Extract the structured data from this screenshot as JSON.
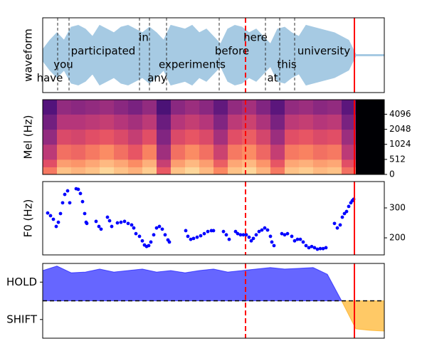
{
  "chart_data": [
    {
      "type": "waveform",
      "ylabel": "waveform",
      "color": "#a6cae3",
      "xlim": [
        0,
        4.8
      ],
      "ylim": [
        -1,
        1
      ],
      "x": [
        0,
        0.1,
        0.2,
        0.3,
        0.4,
        0.5,
        0.6,
        0.7,
        0.8,
        0.9,
        1.0,
        1.1,
        1.2,
        1.3,
        1.4,
        1.5,
        1.6,
        1.7,
        1.8,
        1.9,
        2.0,
        2.1,
        2.2,
        2.3,
        2.4,
        2.5,
        2.6,
        2.7,
        2.8,
        2.9,
        3.0,
        3.1,
        3.2,
        3.3,
        3.4,
        3.5,
        3.6,
        3.7,
        3.8,
        3.9,
        4.0,
        4.1,
        4.2,
        4.3,
        4.4,
        4.5,
        4.6,
        4.7,
        4.8
      ],
      "values": [
        0.15,
        0.4,
        0.6,
        0.4,
        0.75,
        0.8,
        0.7,
        0.5,
        0.8,
        0.7,
        0.6,
        0.75,
        0.8,
        0.7,
        0.6,
        0.75,
        0.6,
        0.4,
        0.8,
        0.75,
        0.7,
        0.8,
        0.6,
        0.7,
        0.5,
        0.3,
        0.7,
        0.8,
        0.75,
        0.6,
        0.7,
        0.5,
        0.3,
        0.7,
        0.75,
        0.6,
        0.5,
        0.8,
        0.75,
        0.7,
        0.65,
        0.6,
        0.5,
        0.4,
        0.02,
        0.02,
        0.02,
        0.02,
        0.02
      ],
      "words": [
        {
          "text": "have",
          "x": 0.1
        },
        {
          "text": "you",
          "x": 0.29
        },
        {
          "text": "participated",
          "x": 0.85
        },
        {
          "text": "in",
          "x": 1.42
        },
        {
          "text": "any",
          "x": 1.61
        },
        {
          "text": "experiments",
          "x": 2.1
        },
        {
          "text": "before",
          "x": 2.66
        },
        {
          "text": "here",
          "x": 2.99
        },
        {
          "text": "at",
          "x": 3.23
        },
        {
          "text": "this",
          "x": 3.43
        },
        {
          "text": "university",
          "x": 3.95
        }
      ],
      "boundaries": [
        0.21,
        0.37,
        1.36,
        1.5,
        1.74,
        2.48,
        3.13,
        3.33,
        3.54
      ],
      "vlines": [
        {
          "x": 2.85,
          "color": "#ff0000",
          "style": "dashed"
        },
        {
          "x": 4.38,
          "color": "#ff0000",
          "style": "solid"
        }
      ]
    },
    {
      "type": "heatmap",
      "ylabel": "Mel (Hz)",
      "colormap": "magma",
      "clim": [
        0,
        1
      ],
      "xlim": [
        0,
        4.8
      ],
      "ylim": [
        0,
        8000
      ],
      "yscale": "symlog",
      "linthresh": 512,
      "yticks": [
        0,
        512,
        1024,
        2048,
        4096
      ],
      "y_edges": [
        0,
        256,
        512,
        1024,
        2048,
        4096,
        8000
      ],
      "matrix": [
        [
          0.72,
          0.88,
          0.85,
          0.88,
          0.92,
          0.88,
          0.84,
          0.9,
          0.65,
          0.88,
          0.92,
          0.86,
          0.75,
          0.88,
          0.92,
          0.85,
          0.72,
          0.88,
          0.9,
          0.86,
          0.88,
          0.7,
          0,
          0
        ],
        [
          0.62,
          0.8,
          0.78,
          0.82,
          0.86,
          0.82,
          0.76,
          0.84,
          0.55,
          0.8,
          0.86,
          0.8,
          0.66,
          0.82,
          0.86,
          0.78,
          0.64,
          0.82,
          0.84,
          0.8,
          0.82,
          0.62,
          0,
          0
        ],
        [
          0.52,
          0.7,
          0.68,
          0.72,
          0.76,
          0.7,
          0.64,
          0.74,
          0.45,
          0.7,
          0.76,
          0.7,
          0.56,
          0.72,
          0.76,
          0.68,
          0.54,
          0.72,
          0.74,
          0.7,
          0.72,
          0.52,
          0,
          0
        ],
        [
          0.42,
          0.6,
          0.58,
          0.62,
          0.64,
          0.6,
          0.54,
          0.62,
          0.38,
          0.6,
          0.64,
          0.6,
          0.46,
          0.62,
          0.66,
          0.58,
          0.44,
          0.62,
          0.64,
          0.6,
          0.62,
          0.44,
          0,
          0
        ],
        [
          0.34,
          0.5,
          0.5,
          0.52,
          0.54,
          0.5,
          0.46,
          0.52,
          0.32,
          0.5,
          0.54,
          0.5,
          0.38,
          0.52,
          0.56,
          0.48,
          0.36,
          0.52,
          0.54,
          0.5,
          0.52,
          0.36,
          0,
          0
        ],
        [
          0.26,
          0.42,
          0.4,
          0.42,
          0.44,
          0.4,
          0.36,
          0.42,
          0.24,
          0.4,
          0.44,
          0.4,
          0.3,
          0.42,
          0.46,
          0.38,
          0.28,
          0.42,
          0.44,
          0.4,
          0.42,
          0.28,
          0,
          0
        ]
      ],
      "vlines": [
        {
          "x": 2.85,
          "color": "#ff0000",
          "style": "dashed"
        },
        {
          "x": 4.38,
          "color": "#ff0000",
          "style": "solid"
        }
      ]
    },
    {
      "type": "scatter",
      "ylabel": "F0 (Hz)",
      "color": "#0000ff",
      "xlim": [
        0,
        4.8
      ],
      "ylim": [
        143,
        388
      ],
      "yticks": [
        200,
        300
      ],
      "x": [
        0.07,
        0.11,
        0.15,
        0.19,
        0.22,
        0.25,
        0.28,
        0.31,
        0.35,
        0.38,
        0.47,
        0.5,
        0.53,
        0.56,
        0.59,
        0.61,
        0.62,
        0.75,
        0.79,
        0.82,
        0.91,
        0.94,
        0.97,
        1.05,
        1.1,
        1.15,
        1.2,
        1.25,
        1.28,
        1.31,
        1.36,
        1.4,
        1.43,
        1.46,
        1.49,
        1.52,
        1.56,
        1.6,
        1.64,
        1.68,
        1.72,
        1.76,
        1.78,
        2.01,
        2.04,
        2.08,
        2.12,
        2.17,
        2.22,
        2.27,
        2.32,
        2.37,
        2.4,
        2.54,
        2.58,
        2.62,
        2.71,
        2.74,
        2.78,
        2.82,
        2.86,
        2.9,
        2.93,
        2.96,
        3.0,
        3.04,
        3.08,
        3.12,
        3.16,
        3.2,
        3.22,
        3.25,
        3.36,
        3.4,
        3.44,
        3.5,
        3.54,
        3.58,
        3.62,
        3.66,
        3.7,
        3.74,
        3.78,
        3.82,
        3.86,
        3.9,
        3.94,
        3.98,
        4.1,
        4.14,
        4.18,
        4.21,
        4.24,
        4.27,
        4.3,
        4.33,
        4.35,
        4.37
      ],
      "values": [
        283,
        274,
        262,
        238,
        252,
        281,
        317,
        345,
        357,
        317,
        364,
        362,
        348,
        321,
        281,
        252,
        248,
        255,
        238,
        229,
        269,
        257,
        238,
        250,
        252,
        255,
        248,
        243,
        233,
        214,
        205,
        190,
        176,
        171,
        174,
        186,
        210,
        233,
        238,
        229,
        210,
        193,
        186,
        224,
        205,
        195,
        198,
        202,
        207,
        214,
        221,
        224,
        224,
        221,
        210,
        195,
        221,
        214,
        210,
        210,
        210,
        202,
        190,
        198,
        210,
        221,
        226,
        233,
        226,
        205,
        186,
        174,
        214,
        210,
        214,
        205,
        190,
        195,
        195,
        186,
        174,
        167,
        171,
        167,
        162,
        164,
        164,
        167,
        248,
        233,
        243,
        269,
        281,
        288,
        305,
        317,
        324,
        329
      ],
      "vlines": [
        {
          "x": 2.85,
          "color": "#ff0000",
          "style": "dashed"
        },
        {
          "x": 4.38,
          "color": "#ff0000",
          "style": "solid"
        }
      ]
    },
    {
      "type": "area",
      "xlim": [
        0,
        4.8
      ],
      "ylim": [
        -1,
        1
      ],
      "yticks": [
        {
          "value": 0.5,
          "label": "HOLD"
        },
        {
          "value": -0.5,
          "label": "SHIFT"
        }
      ],
      "x": [
        0,
        0.2,
        0.4,
        0.6,
        0.8,
        1.0,
        1.2,
        1.4,
        1.6,
        1.8,
        2.0,
        2.2,
        2.4,
        2.6,
        2.8,
        3.0,
        3.2,
        3.4,
        3.6,
        3.8,
        4.0,
        4.2,
        4.4,
        4.6,
        4.8
      ],
      "series": [
        {
          "color": "#0000ff",
          "values": [
            0.81,
            0.93,
            0.75,
            0.77,
            0.85,
            0.77,
            0.81,
            0.85,
            0.77,
            0.81,
            0.75,
            0.81,
            0.85,
            0.77,
            0.81,
            0.85,
            0.89,
            0.85,
            0.87,
            0.89,
            0.71,
            0,
            null,
            null,
            null
          ]
        },
        {
          "color": "#ffa500",
          "values": [
            null,
            null,
            null,
            null,
            null,
            null,
            null,
            null,
            null,
            null,
            null,
            null,
            null,
            null,
            null,
            null,
            null,
            null,
            null,
            null,
            null,
            0,
            -0.75,
            -0.79,
            -0.81
          ]
        }
      ],
      "hlines": [
        {
          "y": 0,
          "color": "#000000",
          "style": "dashed"
        }
      ],
      "vlines": [
        {
          "x": 2.85,
          "color": "#ff0000",
          "style": "dashed"
        },
        {
          "x": 4.38,
          "color": "#ff0000",
          "style": "solid"
        }
      ]
    }
  ]
}
